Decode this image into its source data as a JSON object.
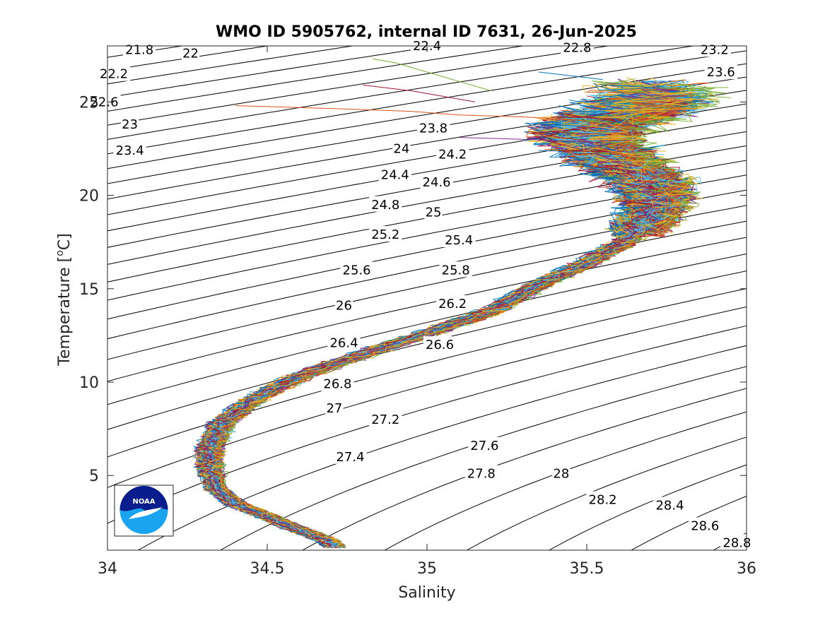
{
  "chart_data": {
    "type": "line",
    "title": "WMO ID 5905762, internal ID 7631, 26-Jun-2025",
    "xlabel": "Salinity",
    "ylabel_main": "Temperature [",
    "ylabel_sup": "o",
    "ylabel_end": "C]",
    "xlim": [
      34,
      36
    ],
    "ylim": [
      1,
      28
    ],
    "grid": false,
    "x_ticks": [
      {
        "value": 34,
        "label": "34"
      },
      {
        "value": 34.5,
        "label": "34.5"
      },
      {
        "value": 35,
        "label": "35"
      },
      {
        "value": 35.5,
        "label": "35.5"
      },
      {
        "value": 36,
        "label": "36"
      }
    ],
    "y_ticks": [
      {
        "value": 5,
        "label": "5"
      },
      {
        "value": 10,
        "label": "10"
      },
      {
        "value": 15,
        "label": "15"
      },
      {
        "value": 20,
        "label": "20"
      },
      {
        "value": 25,
        "label": "25"
      }
    ],
    "density_contour_labels": [
      {
        "label": "21.8",
        "s": 34.1,
        "t": 27.8
      },
      {
        "label": "22",
        "s": 34.26,
        "t": 27.6
      },
      {
        "label": "22.2",
        "s": 34.02,
        "t": 26.5
      },
      {
        "label": "22.6",
        "s": 33.99,
        "t": 25.0
      },
      {
        "label": "23",
        "s": 34.07,
        "t": 23.8
      },
      {
        "label": "23.4",
        "s": 34.07,
        "t": 22.4
      },
      {
        "label": "22.4",
        "s": 35.0,
        "t": 28.0
      },
      {
        "label": "22.8",
        "s": 35.47,
        "t": 27.9
      },
      {
        "label": "23.2",
        "s": 35.9,
        "t": 27.8
      },
      {
        "label": "23.6",
        "s": 35.92,
        "t": 26.6
      },
      {
        "label": "23.8",
        "s": 35.02,
        "t": 23.6
      },
      {
        "label": "24",
        "s": 34.92,
        "t": 22.5
      },
      {
        "label": "24.2",
        "s": 35.08,
        "t": 22.2
      },
      {
        "label": "24.4",
        "s": 34.9,
        "t": 21.1
      },
      {
        "label": "24.6",
        "s": 35.03,
        "t": 20.7
      },
      {
        "label": "24.8",
        "s": 34.87,
        "t": 19.5
      },
      {
        "label": "25",
        "s": 35.02,
        "t": 19.1
      },
      {
        "label": "25.2",
        "s": 34.87,
        "t": 17.9
      },
      {
        "label": "25.4",
        "s": 35.1,
        "t": 17.6
      },
      {
        "label": "25.6",
        "s": 34.78,
        "t": 16.0
      },
      {
        "label": "25.8",
        "s": 35.09,
        "t": 16.0
      },
      {
        "label": "26",
        "s": 34.74,
        "t": 14.1
      },
      {
        "label": "26.2",
        "s": 35.08,
        "t": 14.2
      },
      {
        "label": "26.4",
        "s": 34.74,
        "t": 12.1
      },
      {
        "label": "26.6",
        "s": 35.04,
        "t": 12.0
      },
      {
        "label": "26.8",
        "s": 34.72,
        "t": 9.9
      },
      {
        "label": "27",
        "s": 34.71,
        "t": 8.6
      },
      {
        "label": "27.2",
        "s": 34.87,
        "t": 8.0
      },
      {
        "label": "27.4",
        "s": 34.76,
        "t": 6.0
      },
      {
        "label": "27.6",
        "s": 35.18,
        "t": 6.6
      },
      {
        "label": "27.8",
        "s": 35.17,
        "t": 5.1
      },
      {
        "label": "28",
        "s": 35.42,
        "t": 5.1
      },
      {
        "label": "28.2",
        "s": 35.55,
        "t": 3.7
      },
      {
        "label": "28.4",
        "s": 35.76,
        "t": 3.4
      },
      {
        "label": "28.6",
        "s": 35.87,
        "t": 2.3
      },
      {
        "label": "28.8",
        "s": 35.97,
        "t": 1.4
      }
    ],
    "mean_profile": {
      "s": [
        34.71,
        34.69,
        34.6,
        34.5,
        34.4,
        34.34,
        34.32,
        34.32,
        34.36,
        34.45,
        34.6,
        34.8,
        35.0,
        35.2,
        35.35,
        35.5,
        35.62,
        35.68,
        35.72,
        35.7,
        35.62,
        35.55,
        35.5,
        35.55,
        35.65,
        35.7,
        35.72
      ],
      "t": [
        1.2,
        1.5,
        2.1,
        2.8,
        3.5,
        4.3,
        5.5,
        6.5,
        7.8,
        9.0,
        10.3,
        11.5,
        12.6,
        13.8,
        15.2,
        16.4,
        17.5,
        18.5,
        19.6,
        20.7,
        21.5,
        22.4,
        23.2,
        24.0,
        24.5,
        25.2,
        26.0
      ]
    },
    "surface_outliers": [
      {
        "s": [
          34.4,
          34.7,
          34.95,
          35.1,
          35.3,
          35.5
        ],
        "t": [
          24.8,
          24.65,
          24.5,
          24.3,
          24.2,
          24.0
        ]
      },
      {
        "s": [
          34.83,
          34.9,
          35.0,
          35.1,
          35.2
        ],
        "t": [
          27.3,
          27.1,
          26.6,
          26.1,
          25.6
        ]
      },
      {
        "s": [
          35.35,
          35.45,
          35.55
        ],
        "t": [
          26.6,
          26.4,
          26.2
        ]
      },
      {
        "s": [
          35.1,
          35.3,
          35.45,
          35.55
        ],
        "t": [
          23.1,
          23.0,
          22.9,
          22.8
        ]
      },
      {
        "s": [
          34.8,
          34.95,
          35.05,
          35.15
        ],
        "t": [
          25.9,
          25.6,
          25.3,
          25.0
        ]
      }
    ],
    "series_colors": [
      "#0072BD",
      "#D95319",
      "#EDB120",
      "#7E2F8E",
      "#77AC30",
      "#4DBEEE",
      "#A2142F"
    ]
  },
  "logo": {
    "text": "NOAA",
    "colors": {
      "navy": "#0a1d8c",
      "sky": "#1aa3ee",
      "white": "#ffffff"
    }
  }
}
